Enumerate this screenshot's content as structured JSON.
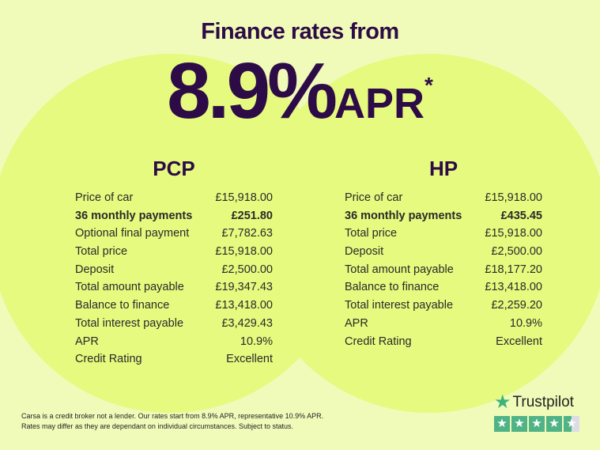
{
  "header": {
    "title": "Finance rates from",
    "rate": "8.9%",
    "apr": "APR",
    "asterisk": "*"
  },
  "plans": [
    {
      "name": "PCP",
      "rows": [
        {
          "label": "Price of car",
          "value": "£15,918.00",
          "bold": false
        },
        {
          "label": "36 monthly payments",
          "value": "£251.80",
          "bold": true
        },
        {
          "label": "Optional final payment",
          "value": "£7,782.63",
          "bold": false
        },
        {
          "label": "Total price",
          "value": "£15,918.00",
          "bold": false
        },
        {
          "label": "Deposit",
          "value": "£2,500.00",
          "bold": false
        },
        {
          "label": "Total amount payable",
          "value": "£19,347.43",
          "bold": false
        },
        {
          "label": "Balance to finance",
          "value": "£13,418.00",
          "bold": false
        },
        {
          "label": "Total interest payable",
          "value": "£3,429.43",
          "bold": false
        },
        {
          "label": "APR",
          "value": "10.9%",
          "bold": false
        },
        {
          "label": "Credit Rating",
          "value": "Excellent",
          "bold": false
        }
      ]
    },
    {
      "name": "HP",
      "rows": [
        {
          "label": "Price of car",
          "value": "£15,918.00",
          "bold": false
        },
        {
          "label": "36 monthly payments",
          "value": "£435.45",
          "bold": true
        },
        {
          "label": "Total price",
          "value": "£15,918.00",
          "bold": false
        },
        {
          "label": "Deposit",
          "value": "£2,500.00",
          "bold": false
        },
        {
          "label": "Total amount payable",
          "value": "£18,177.20",
          "bold": false
        },
        {
          "label": "Balance to finance",
          "value": "£13,418.00",
          "bold": false
        },
        {
          "label": "Total interest payable",
          "value": "£2,259.20",
          "bold": false
        },
        {
          "label": "APR",
          "value": "10.9%",
          "bold": false
        },
        {
          "label": "Credit Rating",
          "value": "Excellent",
          "bold": false
        }
      ]
    }
  ],
  "disclaimer": {
    "line1": "Carsa is a credit broker not a lender. Our rates start from 8.9% APR, representative 10.9% APR.",
    "line2": "Rates may differ as they are dependant on individual circumstances. Subject to status."
  },
  "trustpilot": {
    "label": "Trustpilot",
    "rating_stars": 4.5,
    "max_stars": 5,
    "icon": "star-icon"
  },
  "colors": {
    "background": "#f0fbb9",
    "circle": "#e5fa7e",
    "brand": "#2d0b47",
    "trustpilot_green": "#4fb386"
  }
}
